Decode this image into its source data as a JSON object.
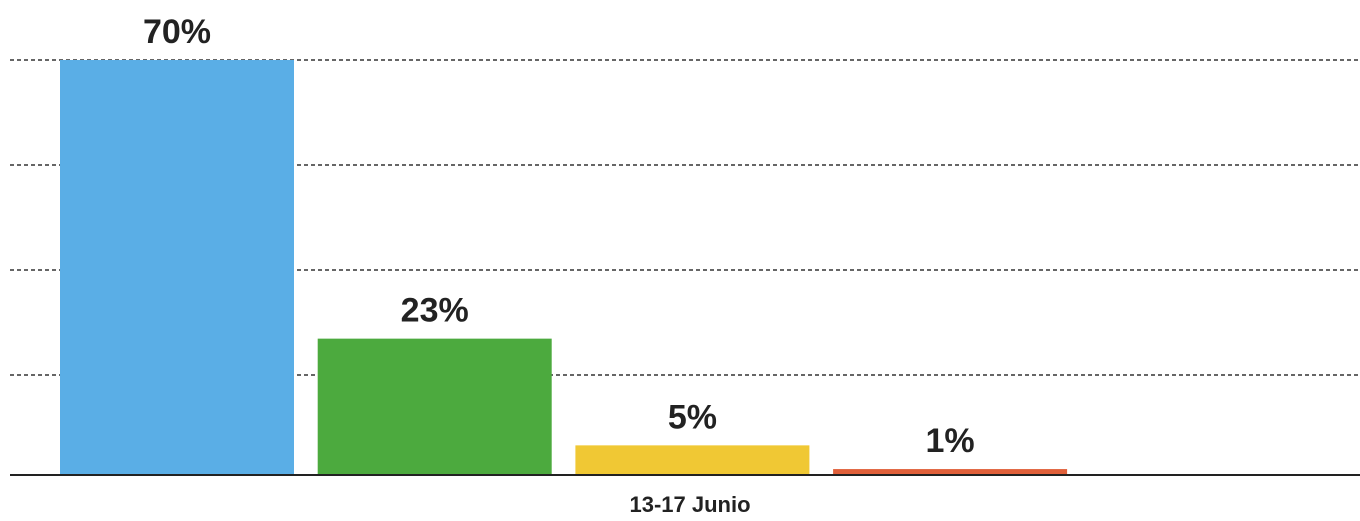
{
  "chart_data": {
    "type": "bar",
    "categories": [
      null,
      null,
      null,
      null
    ],
    "values": [
      70,
      23,
      5,
      1
    ],
    "value_labels": [
      "70%",
      "23%",
      "5%",
      "1%"
    ],
    "colors": [
      "#5aaee6",
      "#4caa3e",
      "#f0c834",
      "#e0603a"
    ],
    "xlabel": "13-17 Junio",
    "ylim": [
      0,
      70
    ]
  }
}
